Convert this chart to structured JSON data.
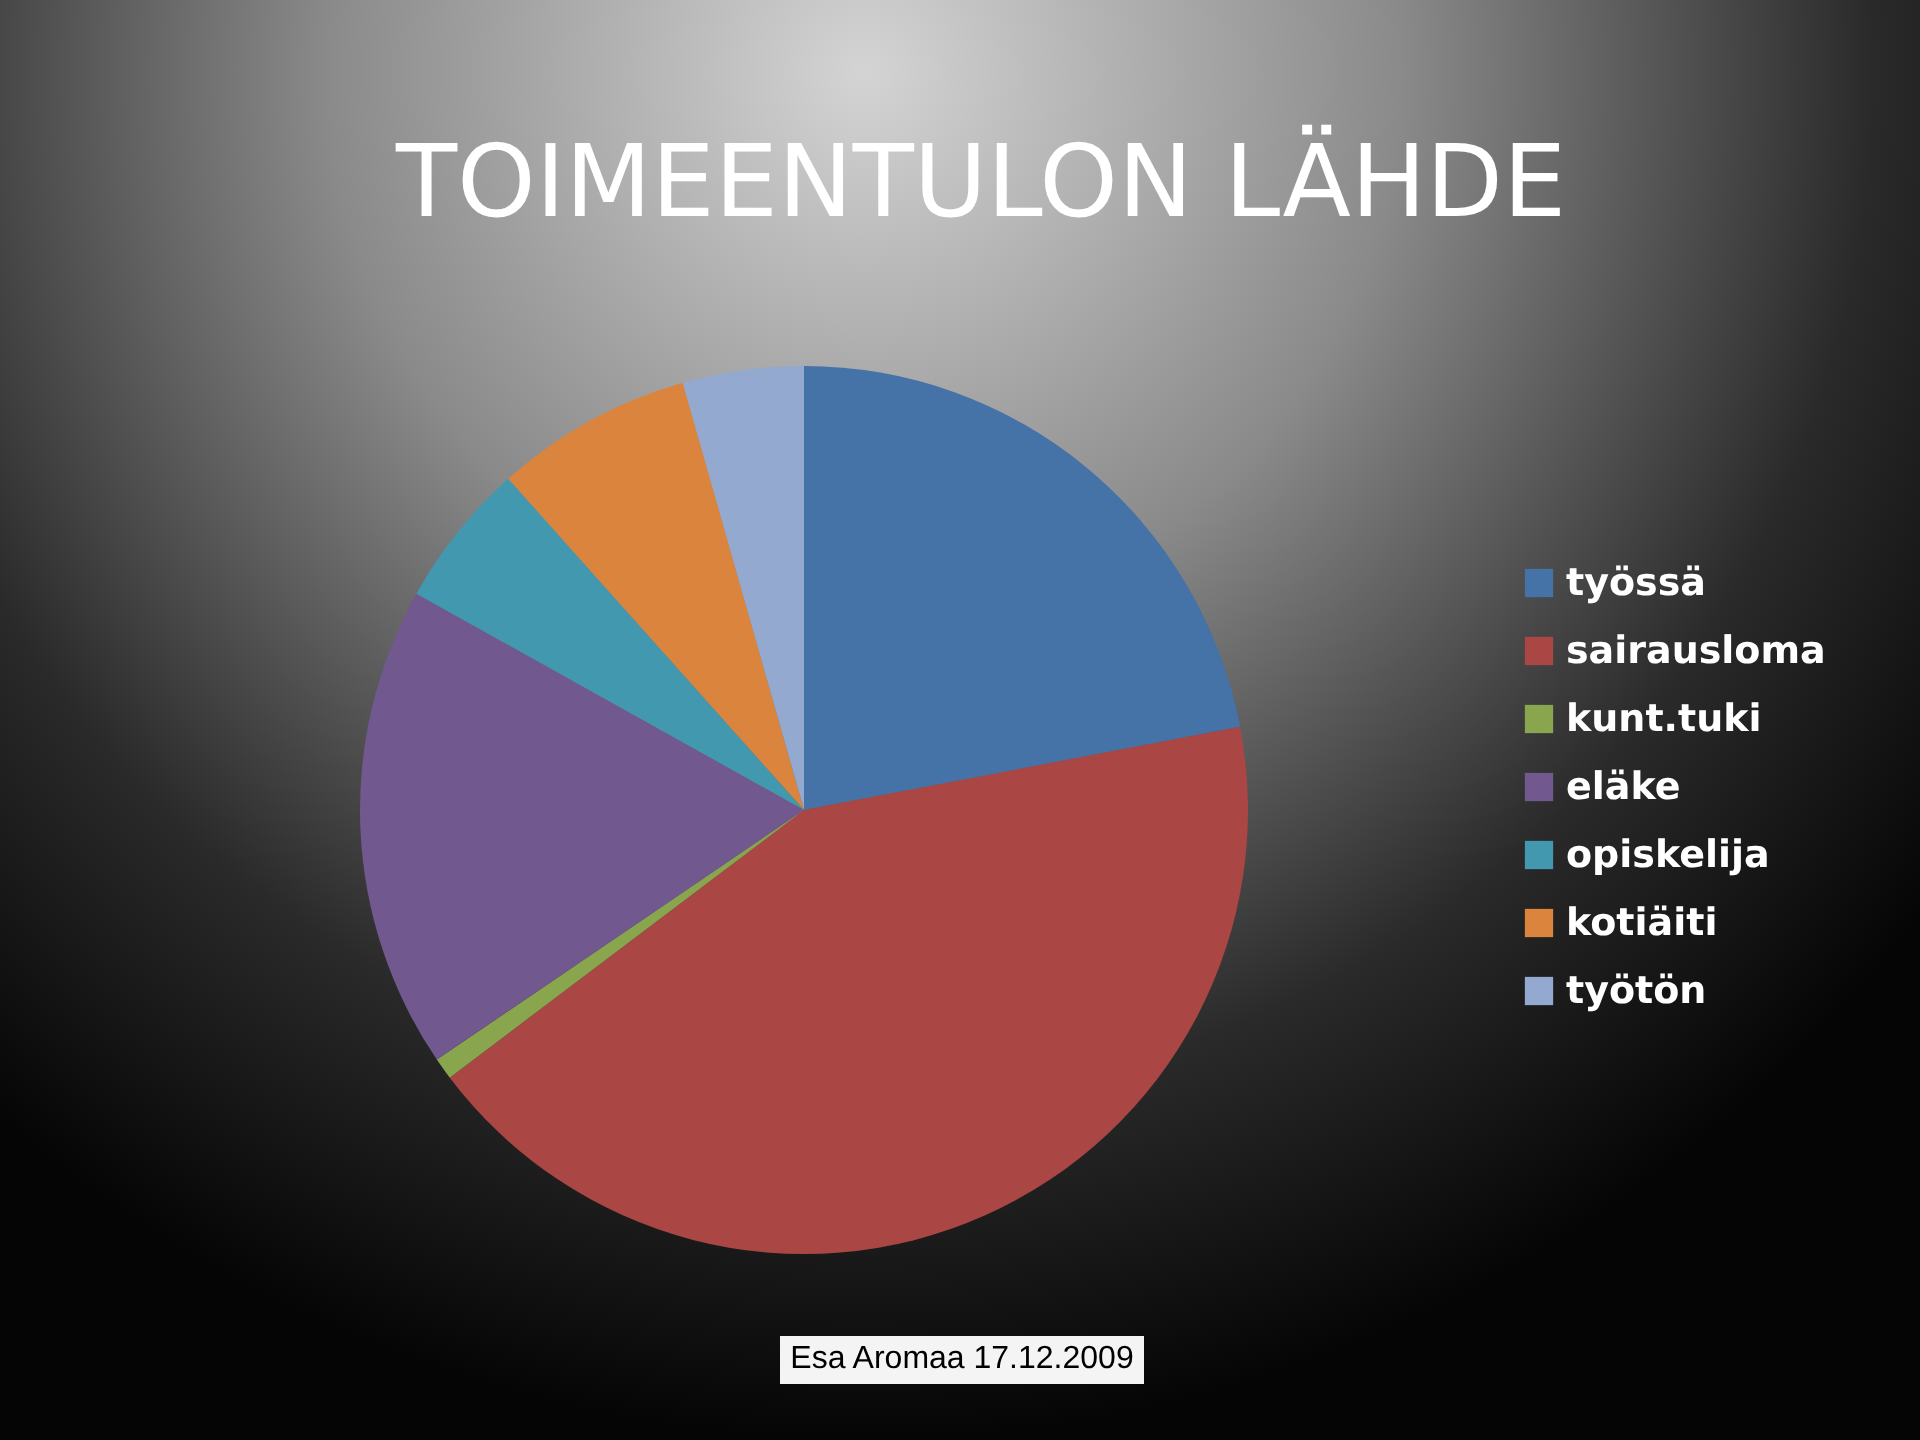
{
  "chart_data": {
    "type": "pie",
    "title": "TOIMEENTULON LÄHDE",
    "categories": [
      "työssä",
      "sairausloma",
      "kunt.tuki",
      "eläke",
      "opiskelija",
      "kotiäiti",
      "työtön"
    ],
    "values": [
      22,
      42.7,
      0.8,
      17.6,
      5.3,
      7.2,
      4.4
    ],
    "colors": [
      "#4572a7",
      "#aa4643",
      "#89a54e",
      "#71588f",
      "#4198af",
      "#db843d",
      "#93a9cf"
    ],
    "legend": "right",
    "annotations": [
      "Esa Aromaa 17.12.2009"
    ]
  }
}
